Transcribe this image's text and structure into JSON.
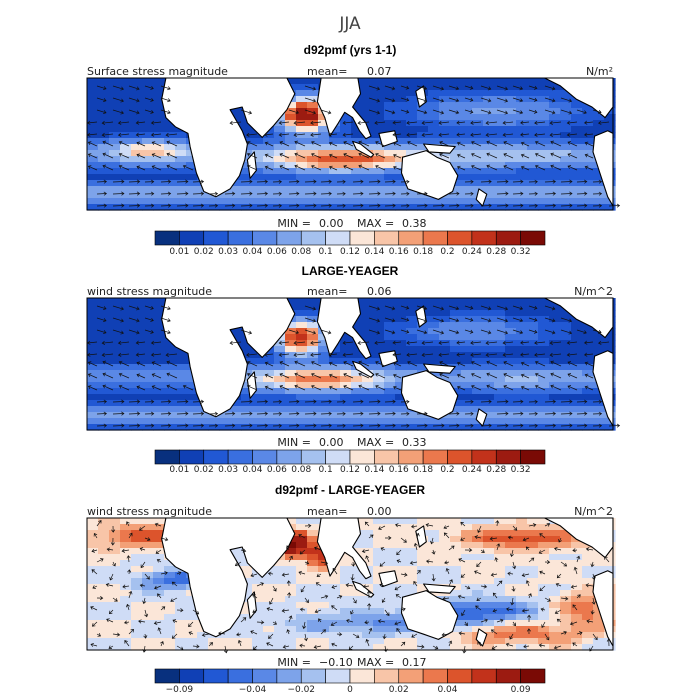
{
  "title": "JJA",
  "colors": {
    "background": "#ffffff",
    "land": "#ffffff",
    "coast": "#000000",
    "vector": "#111111"
  },
  "chart_data": [
    {
      "type": "heatmap",
      "title": "d92pmf (yrs 1-1)",
      "left_label": "Surface stress magnitude",
      "mean_label": "mean=",
      "mean_value": "0.07",
      "units": "N/m²",
      "min_label": "MIN =",
      "min_value": "0.00",
      "max_label": "MAX =",
      "max_value": "0.38",
      "overlay": "wind stress vectors",
      "colorbar": {
        "ticks": [
          "0.01",
          "0.02",
          "0.03",
          "0.04",
          "0.06",
          "0.08",
          "0.1",
          "0.12",
          "0.14",
          "0.16",
          "0.18",
          "0.2",
          "0.24",
          "0.28",
          "0.32"
        ],
        "colors": [
          "#08307e",
          "#1040b5",
          "#2158d4",
          "#3a6fdf",
          "#5a88e6",
          "#7da3ea",
          "#a5c1ef",
          "#cfdcf6",
          "#fbe6d8",
          "#f8c5a8",
          "#f3a077",
          "#eb784d",
          "#dc542c",
          "#c2321b",
          "#9c1b11",
          "#7a0a05"
        ]
      }
    },
    {
      "type": "heatmap",
      "title": "LARGE-YEAGER",
      "left_label": "wind stress magnitude",
      "mean_label": "mean=",
      "mean_value": "0.06",
      "units": "N/m^2",
      "min_label": "MIN =",
      "min_value": "0.00",
      "max_label": "MAX =",
      "max_value": "0.33",
      "overlay": "wind stress vectors",
      "colorbar": {
        "ticks": [
          "0.01",
          "0.02",
          "0.03",
          "0.04",
          "0.06",
          "0.08",
          "0.1",
          "0.12",
          "0.14",
          "0.16",
          "0.18",
          "0.2",
          "0.24",
          "0.28",
          "0.32"
        ],
        "colors": [
          "#08307e",
          "#1040b5",
          "#2158d4",
          "#3a6fdf",
          "#5a88e6",
          "#7da3ea",
          "#a5c1ef",
          "#cfdcf6",
          "#fbe6d8",
          "#f8c5a8",
          "#f3a077",
          "#eb784d",
          "#dc542c",
          "#c2321b",
          "#9c1b11",
          "#7a0a05"
        ]
      }
    },
    {
      "type": "heatmap",
      "title": "d92pmf - LARGE-YEAGER",
      "left_label": "wind stress magnitude",
      "mean_label": "mean=",
      "mean_value": "0.00",
      "units": "N/m^2",
      "min_label": "MIN =",
      "min_value": "−0.10",
      "max_label": "MAX =",
      "max_value": "0.17",
      "overlay": "wind stress difference vectors",
      "colorbar": {
        "ticks": [
          "−0.09",
          "−0.04",
          "−0.02",
          "0",
          "0.02",
          "0.04",
          "0.09"
        ],
        "colors": [
          "#08307e",
          "#1040b5",
          "#2158d4",
          "#3a6fdf",
          "#5a88e6",
          "#7da3ea",
          "#a5c1ef",
          "#cfdcf6",
          "#fbe6d8",
          "#f8c5a8",
          "#f3a077",
          "#eb784d",
          "#dc542c",
          "#c2321b",
          "#9c1b11",
          "#7a0a05"
        ]
      }
    }
  ]
}
